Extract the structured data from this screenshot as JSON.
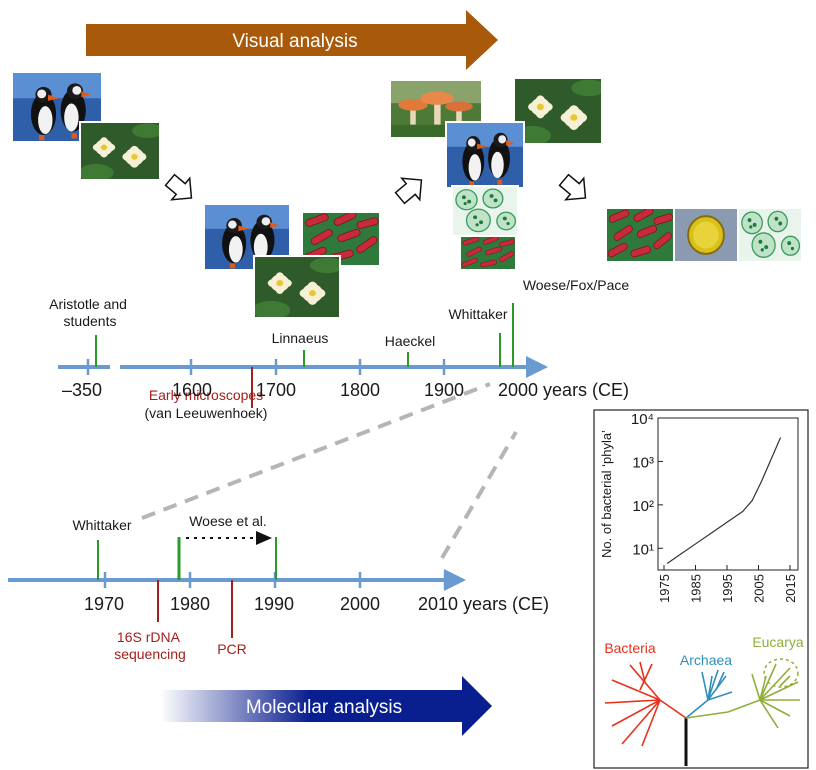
{
  "visual_arrow": {
    "label": "Visual analysis",
    "color": "#a85a0a"
  },
  "molecular_arrow": {
    "label": "Molecular analysis",
    "color": "#0a1f8f"
  },
  "timeline1": {
    "ticks": [
      "–350",
      "1600",
      "1700",
      "1800",
      "1900",
      "2000 years (CE)"
    ],
    "events": {
      "aristotle": "Aristotle and\nstudents",
      "linnaeus": "Linnaeus",
      "haeckel": "Haeckel",
      "whittaker": "Whittaker",
      "woese": "Woese/Fox/Pace",
      "microscopes": "Early microscopes",
      "leeuwenhoek": "(van Leeuwenhoek)"
    }
  },
  "timeline2": {
    "ticks": [
      "1970",
      "1980",
      "1990",
      "2000",
      "2010 years (CE)"
    ],
    "events": {
      "whittaker": "Whittaker",
      "woese": "Woese et al.",
      "rdna": "16S rDNA\nsequencing",
      "pcr": "PCR"
    }
  },
  "chart_data": {
    "type": "line",
    "ylabel": "No. of bacterial ‘phyla’",
    "xlabel": "",
    "x_ticks": [
      "1975",
      "1985",
      "1995",
      "2005",
      "2015"
    ],
    "y_ticks": [
      "10¹",
      "10²",
      "10³",
      "10⁴"
    ],
    "yscale": "log",
    "xlim": [
      1975,
      2015
    ],
    "ylim_exp": [
      0.5,
      4
    ],
    "series": [
      {
        "x": [
          1976,
          1980,
          1985,
          1990,
          1995,
          2000,
          2003,
          2006,
          2009,
          2012
        ],
        "log10_y": [
          0.65,
          0.85,
          1.1,
          1.35,
          1.6,
          1.85,
          2.1,
          2.55,
          3.05,
          3.55
        ]
      }
    ]
  },
  "tree": {
    "groups": [
      {
        "name": "Bacteria",
        "color": "#e8311c"
      },
      {
        "name": "Archaea",
        "color": "#2f8fb8"
      },
      {
        "name": "Eucarya",
        "color": "#8fae3a"
      }
    ]
  },
  "photos": [
    "puffins",
    "water-lily",
    "puffins",
    "bacteria",
    "water-lily",
    "mushrooms",
    "water-lily",
    "puffins",
    "green-cells",
    "bacteria",
    "bacteria",
    "yellow-cell",
    "green-cells"
  ]
}
